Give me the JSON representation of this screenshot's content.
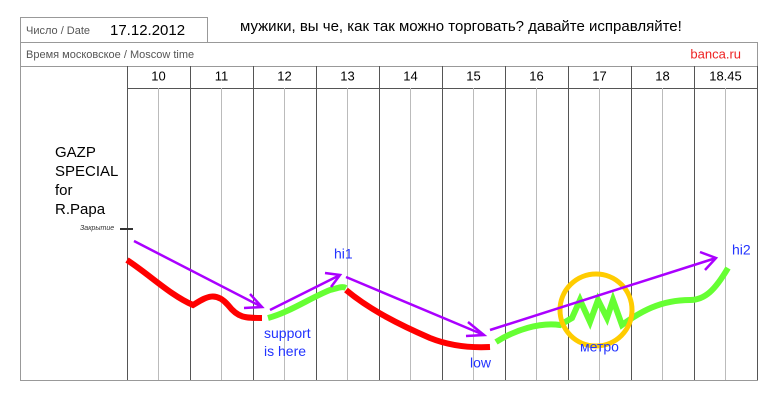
{
  "header": {
    "date_label": "Число / Date",
    "date": "17.12.2012",
    "comment": "мужики, вы че, как так можно торговать? давайте исправляйте!"
  },
  "subheader": {
    "time_label": "Время московское / Moscow time",
    "site": "banca.ru"
  },
  "hours": [
    "10",
    "11",
    "12",
    "13",
    "14",
    "15",
    "16",
    "17",
    "18",
    "18.45"
  ],
  "annotations": {
    "ticker": [
      "GAZP",
      "SPECIAL",
      "for",
      "R.Papa"
    ],
    "close_label": "Закрытие",
    "support": [
      "support",
      "is here"
    ],
    "hi1": "hi1",
    "low": "low",
    "hi2": "hi2",
    "metro": "метро"
  }
}
